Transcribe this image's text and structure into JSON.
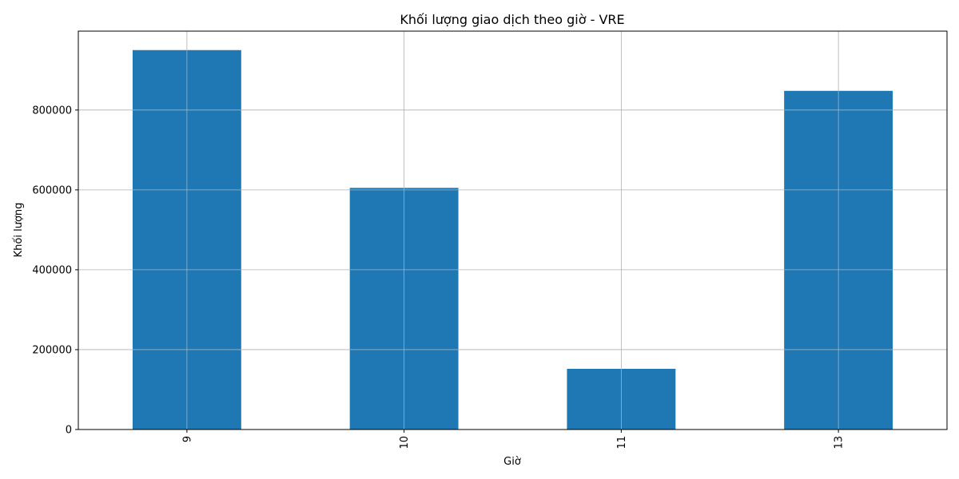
{
  "chart_data": {
    "type": "bar",
    "title": "Khối lượng giao dịch theo giờ - VRE",
    "xlabel": "Giờ",
    "ylabel": "Khối lượng",
    "categories": [
      "9",
      "10",
      "11",
      "13"
    ],
    "values": [
      950000,
      605000,
      152000,
      848000
    ],
    "ylim": [
      0,
      997500
    ],
    "yticks": [
      0,
      200000,
      400000,
      600000,
      800000
    ],
    "ytick_labels": [
      "0",
      "200000",
      "400000",
      "600000",
      "800000"
    ],
    "grid": true,
    "legend": false,
    "bar_color": "#1f77b4",
    "xtick_rotation": "vertical"
  }
}
